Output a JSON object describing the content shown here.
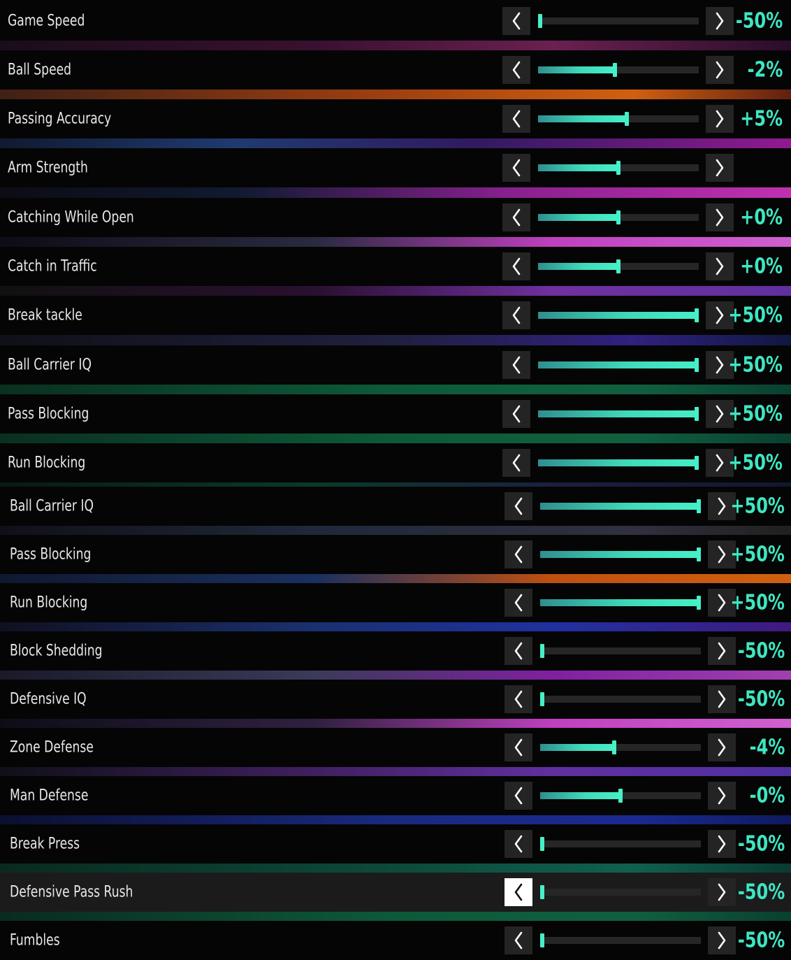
{
  "accent_color": "#45f0c8",
  "icons": {
    "decrease": "chevron-left-icon",
    "increase": "chevron-right-icon"
  },
  "settings": [
    {
      "label": "Game Speed",
      "value": "-50%",
      "level": 0.0
    },
    {
      "label": "Ball Speed",
      "value": "-2%",
      "level": 0.48
    },
    {
      "label": "Passing Accuracy",
      "value": "+5%",
      "level": 0.55
    },
    {
      "label": "Arm Strength",
      "value": "",
      "level": 0.5
    },
    {
      "label": "Catching While Open",
      "value": "+0%",
      "level": 0.5
    },
    {
      "label": "Catch in Traffic",
      "value": "+0%",
      "level": 0.5
    },
    {
      "label": "Break tackle",
      "value": "+50%",
      "level": 1.0
    },
    {
      "label": "Ball Carrier IQ",
      "value": "+50%",
      "level": 1.0
    },
    {
      "label": "Pass Blocking",
      "value": "+50%",
      "level": 1.0
    },
    {
      "label": "Run Blocking",
      "value": "+50%",
      "level": 1.0
    },
    {
      "label": "Ball Carrier IQ",
      "value": "+50%",
      "level": 1.0
    },
    {
      "label": "Pass Blocking",
      "value": "+50%",
      "level": 1.0
    },
    {
      "label": "Run Blocking",
      "value": "+50%",
      "level": 1.0
    },
    {
      "label": "Block Shedding",
      "value": "-50%",
      "level": 0.0
    },
    {
      "label": "Defensive IQ",
      "value": "-50%",
      "level": 0.0
    },
    {
      "label": "Zone Defense",
      "value": "-4%",
      "level": 0.46
    },
    {
      "label": "Man Defense",
      "value": "-0%",
      "level": 0.5
    },
    {
      "label": "Break Press",
      "value": "-50%",
      "level": 0.0
    },
    {
      "label": "Defensive Pass Rush",
      "value": "-50%",
      "level": 0.0,
      "selected": true
    },
    {
      "label": "Fumbles",
      "value": "-50%",
      "level": 0.0
    }
  ]
}
